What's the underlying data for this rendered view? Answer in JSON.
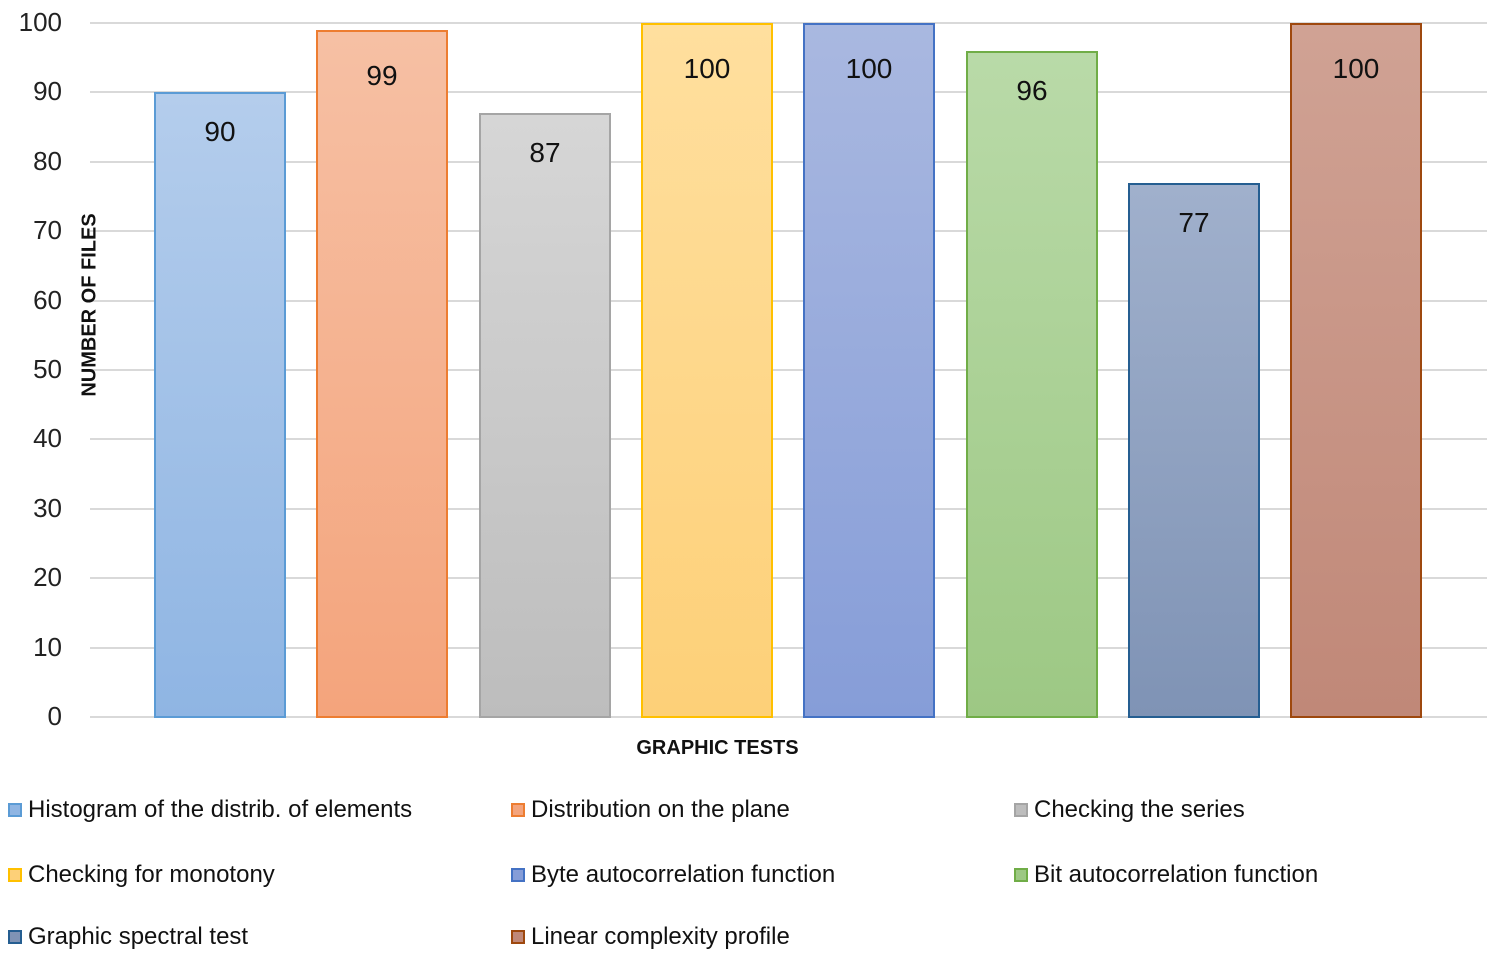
{
  "chart_data": {
    "type": "bar",
    "title": "",
    "xlabel": "GRAPHIC TESTS",
    "ylabel": "NUMBER OF FILES",
    "ylim": [
      0,
      100
    ],
    "yticks": [
      0,
      10,
      20,
      30,
      40,
      50,
      60,
      70,
      80,
      90,
      100
    ],
    "grid": true,
    "legend_position": "bottom",
    "categories": [
      "Histogram of the distrib. of elements",
      "Distribution on the plane",
      "Checking the series",
      "Checking for monotony",
      "Byte autocorrelation function",
      "Bit autocorrelation function",
      "Graphic spectral test",
      "Linear complexity profile"
    ],
    "values": [
      90,
      99,
      87,
      100,
      100,
      96,
      77,
      100
    ],
    "series": [
      {
        "name": "Histogram of the distrib. of elements",
        "value": 90,
        "label": "90",
        "fill_top": "#b4cdec",
        "fill_bottom": "#8fb5e3",
        "border": "#5b9bd5"
      },
      {
        "name": "Distribution on the plane",
        "value": 99,
        "label": "99",
        "fill_top": "#f6c0a4",
        "fill_bottom": "#f4a47c",
        "border": "#ed7d31"
      },
      {
        "name": "Checking the series",
        "value": 87,
        "label": "87",
        "fill_top": "#d6d6d6",
        "fill_bottom": "#bdbdbd",
        "border": "#a5a5a5"
      },
      {
        "name": "Checking for monotony",
        "value": 100,
        "label": "100",
        "fill_top": "#ffdf9e",
        "fill_bottom": "#fdd078",
        "border": "#ffc000"
      },
      {
        "name": "Byte autocorrelation function",
        "value": 100,
        "label": "100",
        "fill_top": "#a9b8e0",
        "fill_bottom": "#869dd8",
        "border": "#4472c4"
      },
      {
        "name": "Bit autocorrelation function",
        "value": 96,
        "label": "96",
        "fill_top": "#b9daa8",
        "fill_bottom": "#9dc884",
        "border": "#70ad47"
      },
      {
        "name": "Graphic spectral test",
        "value": 77,
        "label": "77",
        "fill_top": "#a0b0cc",
        "fill_bottom": "#7f93b5",
        "border": "#255e91"
      },
      {
        "name": "Linear complexity profile",
        "value": 100,
        "label": "100",
        "fill_top": "#d0a294",
        "fill_bottom": "#c08878",
        "border": "#9e480e"
      }
    ]
  },
  "axes": {
    "xlabel": "GRAPHIC TESTS",
    "ylabel": "NUMBER OF FILES",
    "yticks": [
      "0",
      "10",
      "20",
      "30",
      "40",
      "50",
      "60",
      "70",
      "80",
      "90",
      "100"
    ]
  },
  "legend": {
    "items": [
      {
        "label": "Histogram of the distrib. of elements",
        "color": "#8fb5e3",
        "border": "#5b9bd5"
      },
      {
        "label": "Distribution on the plane",
        "color": "#f4a47c",
        "border": "#ed7d31"
      },
      {
        "label": "Checking the series",
        "color": "#bdbdbd",
        "border": "#a5a5a5"
      },
      {
        "label": "Checking for monotony",
        "color": "#fdd078",
        "border": "#ffc000"
      },
      {
        "label": "Byte autocorrelation function",
        "color": "#869dd8",
        "border": "#4472c4"
      },
      {
        "label": "Bit autocorrelation function",
        "color": "#9dc884",
        "border": "#70ad47"
      },
      {
        "label": "Graphic spectral test",
        "color": "#7f93b5",
        "border": "#255e91"
      },
      {
        "label": "Linear complexity profile",
        "color": "#c08878",
        "border": "#9e480e"
      }
    ]
  }
}
